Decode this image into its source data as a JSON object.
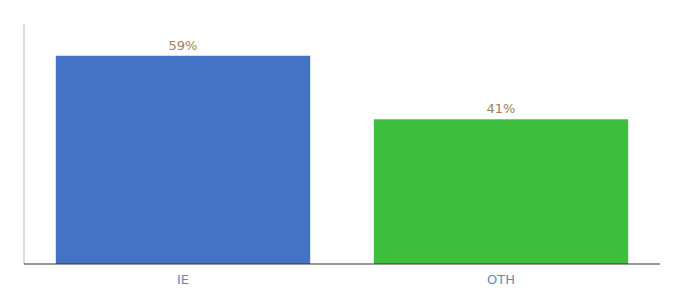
{
  "chart_data": {
    "type": "bar",
    "categories": [
      "IE",
      "OTH"
    ],
    "values": [
      59,
      41
    ],
    "value_labels": [
      "59%",
      "41%"
    ],
    "colors": [
      "#4472c4",
      "#3dbf3d"
    ],
    "ylim": [
      0,
      68
    ],
    "yticks": [],
    "data_labels": true,
    "tick_labels": "x",
    "grid": false
  }
}
